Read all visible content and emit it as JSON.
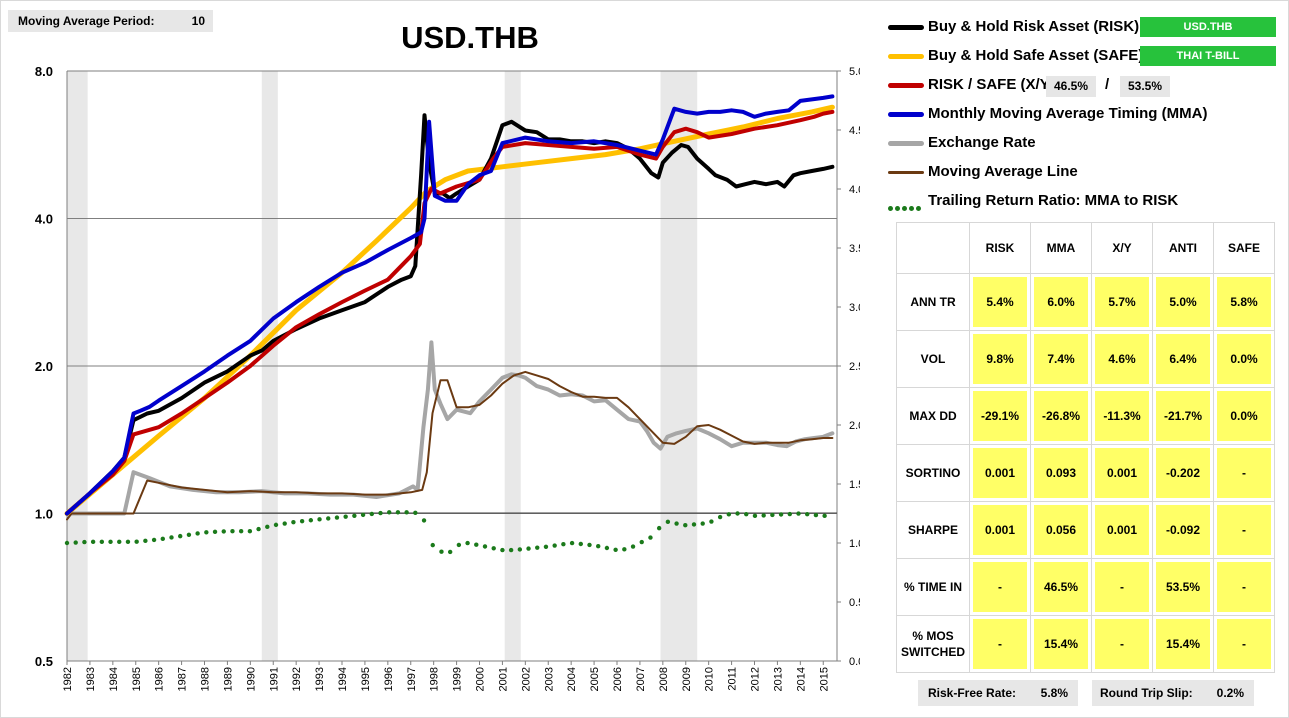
{
  "moving_average": {
    "label": "Moving Average Period:",
    "value": "10"
  },
  "title": "USD.THB",
  "legend": [
    {
      "label": "Buy & Hold Risk Asset (RISK):",
      "color": "#000000",
      "style": "thick",
      "badge": "USD.THB"
    },
    {
      "label": "Buy & Hold Safe Asset (SAFE):",
      "color": "#ffc000",
      "style": "thick",
      "badge": "THAI T-BILL"
    },
    {
      "label": "RISK / SAFE (X/Y):",
      "color": "#c00000",
      "style": "thick",
      "split_x": "46.5%",
      "split_y": "53.5%"
    },
    {
      "label": "Monthly Moving Average Timing (MMA)",
      "color": "#0000cc",
      "style": "thick"
    },
    {
      "label": "Exchange Rate",
      "color": "#a6a6a6",
      "style": "thick"
    },
    {
      "label": "Moving Average Line",
      "color": "#6b3a12",
      "style": "thin"
    },
    {
      "label": "Trailing Return Ratio: MMA to RISK",
      "color": "#1b7a1b",
      "style": "dots"
    }
  ],
  "slash": "/",
  "stats": {
    "columns": [
      "RISK",
      "MMA",
      "X/Y",
      "ANTI",
      "SAFE"
    ],
    "rows": [
      {
        "label": "ANN TR",
        "values": [
          "5.4%",
          "6.0%",
          "5.7%",
          "5.0%",
          "5.8%"
        ]
      },
      {
        "label": "VOL",
        "values": [
          "9.8%",
          "7.4%",
          "4.6%",
          "6.4%",
          "0.0%"
        ]
      },
      {
        "label": "MAX DD",
        "values": [
          "-29.1%",
          "-26.8%",
          "-11.3%",
          "-21.7%",
          "0.0%"
        ]
      },
      {
        "label": "SORTINO",
        "values": [
          "0.001",
          "0.093",
          "0.001",
          "-0.202",
          "-"
        ]
      },
      {
        "label": "SHARPE",
        "values": [
          "0.001",
          "0.056",
          "0.001",
          "-0.092",
          "-"
        ]
      },
      {
        "label": "% TIME IN",
        "values": [
          "-",
          "46.5%",
          "-",
          "53.5%",
          "-"
        ]
      },
      {
        "label": "% MOS SWITCHED",
        "values": [
          "-",
          "15.4%",
          "-",
          "15.4%",
          "-"
        ]
      }
    ]
  },
  "footer": {
    "risk_free_label": "Risk-Free Rate:",
    "risk_free_value": "5.8%",
    "slip_label": "Round Trip Slip:",
    "slip_value": "0.2%"
  },
  "chart_data": {
    "type": "line",
    "title": "USD.THB",
    "left_axis": {
      "scale": "log2",
      "range": [
        0.5,
        8.0
      ],
      "ticks": [
        "0.5",
        "1.0",
        "2.0",
        "4.0",
        "8.0"
      ]
    },
    "right_axis": {
      "scale": "linear",
      "range": [
        0.0,
        5.0
      ],
      "ticks": [
        "0.0",
        "0.5",
        "1.0",
        "1.5",
        "2.0",
        "2.5",
        "3.0",
        "3.5",
        "4.0",
        "4.5",
        "5.0"
      ]
    },
    "x_axis": {
      "range": [
        1982.0,
        2015.6
      ],
      "ticks": [
        "1982",
        "1983",
        "1984",
        "1985",
        "1986",
        "1987",
        "1988",
        "1989",
        "1990",
        "1991",
        "1992",
        "1993",
        "1994",
        "1995",
        "1996",
        "1997",
        "1998",
        "1999",
        "2000",
        "2001",
        "2002",
        "2003",
        "2004",
        "2005",
        "2006",
        "2007",
        "2008",
        "2009",
        "2010",
        "2011",
        "2012",
        "2013",
        "2014",
        "2015"
      ]
    },
    "gridlines": "horizontal at left-axis ticks",
    "shaded_periods": [
      [
        1982.0,
        1982.9
      ],
      [
        1990.5,
        1991.2
      ],
      [
        2001.1,
        2001.8
      ],
      [
        2007.9,
        2009.5
      ]
    ],
    "series": [
      {
        "name": "Exchange Rate",
        "axis": "right",
        "color": "#a6a6a6",
        "width": 4,
        "x": [
          1982.0,
          1984.3,
          1984.5,
          1984.9,
          1985.6,
          1986.5,
          1987.5,
          1988.5,
          1989.5,
          1990.5,
          1991.5,
          1992.5,
          1993.5,
          1994.5,
          1995.5,
          1996.5,
          1997.1,
          1997.3,
          1997.55,
          1997.75,
          1997.9,
          1998.05,
          1998.3,
          1998.6,
          1999.0,
          1999.6,
          2000.0,
          2000.5,
          2001.0,
          2001.4,
          2001.7,
          2002.0,
          2002.5,
          2003.0,
          2003.5,
          2004.0,
          2004.5,
          2005.0,
          2005.5,
          2006.0,
          2006.5,
          2007.0,
          2007.3,
          2007.6,
          2007.9,
          2008.2,
          2008.6,
          2009.0,
          2009.5,
          2010.0,
          2010.5,
          2011.0,
          2011.5,
          2012.0,
          2012.5,
          2013.0,
          2013.4,
          2013.8,
          2014.2,
          2014.6,
          2015.0,
          2015.4
        ],
        "y": [
          1.25,
          1.25,
          1.25,
          1.6,
          1.55,
          1.48,
          1.45,
          1.43,
          1.43,
          1.44,
          1.42,
          1.42,
          1.41,
          1.41,
          1.39,
          1.42,
          1.48,
          1.45,
          1.98,
          2.3,
          2.7,
          2.3,
          2.18,
          2.05,
          2.13,
          2.1,
          2.2,
          2.3,
          2.4,
          2.43,
          2.42,
          2.4,
          2.33,
          2.3,
          2.25,
          2.26,
          2.25,
          2.2,
          2.21,
          2.13,
          2.05,
          2.03,
          1.95,
          1.85,
          1.8,
          1.9,
          1.93,
          1.95,
          1.97,
          1.93,
          1.88,
          1.82,
          1.85,
          1.85,
          1.85,
          1.83,
          1.82,
          1.86,
          1.88,
          1.89,
          1.9,
          1.93
        ]
      },
      {
        "name": "Moving Average Line",
        "axis": "right",
        "color": "#6b3a12",
        "width": 2,
        "x": [
          1982.0,
          1982.2,
          1984.5,
          1984.9,
          1985.5,
          1986.0,
          1987.0,
          1988.0,
          1989.0,
          1990.0,
          1991.0,
          1992.0,
          1993.0,
          1994.0,
          1995.0,
          1996.0,
          1997.0,
          1997.5,
          1997.7,
          1997.95,
          1998.3,
          1998.6,
          1999.0,
          1999.5,
          2000.0,
          2000.5,
          2001.0,
          2001.5,
          2002.0,
          2002.5,
          2003.0,
          2003.5,
          2004.0,
          2004.5,
          2005.0,
          2005.5,
          2006.0,
          2006.5,
          2007.0,
          2007.5,
          2008.0,
          2008.5,
          2009.0,
          2009.5,
          2010.0,
          2010.5,
          2011.0,
          2011.5,
          2012.0,
          2012.5,
          2013.0,
          2013.5,
          2014.0,
          2014.5,
          2015.0,
          2015.4
        ],
        "y": [
          1.2,
          1.25,
          1.25,
          1.25,
          1.53,
          1.51,
          1.47,
          1.45,
          1.43,
          1.44,
          1.43,
          1.43,
          1.42,
          1.42,
          1.41,
          1.41,
          1.43,
          1.45,
          1.6,
          2.1,
          2.38,
          2.38,
          2.15,
          2.15,
          2.17,
          2.25,
          2.35,
          2.42,
          2.45,
          2.42,
          2.39,
          2.33,
          2.28,
          2.24,
          2.24,
          2.23,
          2.23,
          2.15,
          2.05,
          1.95,
          1.85,
          1.84,
          1.9,
          1.99,
          2.0,
          1.96,
          1.91,
          1.86,
          1.84,
          1.85,
          1.85,
          1.85,
          1.87,
          1.88,
          1.89,
          1.89
        ]
      },
      {
        "name": "Buy & Hold Safe Asset (SAFE)",
        "axis": "left",
        "color": "#ffc000",
        "width": 5,
        "x": [
          1982.0,
          1984.0,
          1986.0,
          1988.0,
          1990.0,
          1992.0,
          1994.0,
          1995.5,
          1997.0,
          1997.7,
          1998.5,
          1999.5,
          2001.0,
          2002.5,
          2004.0,
          2005.5,
          2007.0,
          2008.5,
          2010.0,
          2011.5,
          2013.0,
          2014.5,
          2015.4
        ],
        "y": [
          1.0,
          1.2,
          1.44,
          1.72,
          2.1,
          2.6,
          3.1,
          3.6,
          4.2,
          4.55,
          4.8,
          5.0,
          5.1,
          5.2,
          5.3,
          5.4,
          5.55,
          5.75,
          5.95,
          6.15,
          6.4,
          6.6,
          6.75
        ]
      },
      {
        "name": "Buy & Hold Risk Asset (RISK)",
        "axis": "left",
        "color": "#000000",
        "width": 4,
        "x": [
          1982.0,
          1983.0,
          1984.0,
          1984.5,
          1984.9,
          1985.5,
          1986.0,
          1987.0,
          1988.0,
          1989.0,
          1990.0,
          1990.5,
          1991.0,
          1992.0,
          1993.0,
          1994.0,
          1995.0,
          1996.0,
          1996.6,
          1997.0,
          1997.2,
          1997.45,
          1997.6,
          1997.8,
          1998.05,
          1998.4,
          1998.7,
          1999.0,
          1999.5,
          2000.0,
          2000.5,
          2001.0,
          2001.4,
          2002.0,
          2002.5,
          2003.0,
          2003.5,
          2004.0,
          2004.5,
          2005.0,
          2005.5,
          2006.0,
          2006.5,
          2007.0,
          2007.5,
          2007.8,
          2008.0,
          2008.4,
          2008.8,
          2009.1,
          2009.5,
          2010.0,
          2010.3,
          2010.8,
          2011.2,
          2011.6,
          2012.0,
          2012.5,
          2013.0,
          2013.3,
          2013.7,
          2014.0,
          2014.5,
          2015.0,
          2015.4
        ],
        "y": [
          1.0,
          1.1,
          1.22,
          1.3,
          1.55,
          1.6,
          1.62,
          1.72,
          1.85,
          1.95,
          2.1,
          2.15,
          2.25,
          2.38,
          2.5,
          2.6,
          2.7,
          2.9,
          3.0,
          3.05,
          3.2,
          4.9,
          6.5,
          5.2,
          4.5,
          4.5,
          4.4,
          4.5,
          4.65,
          4.8,
          5.3,
          6.2,
          6.3,
          6.05,
          6.0,
          5.8,
          5.8,
          5.75,
          5.75,
          5.7,
          5.75,
          5.7,
          5.55,
          5.3,
          4.95,
          4.85,
          5.2,
          5.45,
          5.65,
          5.6,
          5.3,
          5.05,
          4.9,
          4.8,
          4.65,
          4.7,
          4.75,
          4.7,
          4.75,
          4.65,
          4.9,
          4.95,
          5.0,
          5.05,
          5.1
        ]
      },
      {
        "name": "RISK / SAFE (X/Y)",
        "axis": "left",
        "color": "#c00000",
        "width": 4,
        "x": [
          1982.0,
          1983.0,
          1984.0,
          1984.5,
          1984.9,
          1986.0,
          1987.0,
          1988.0,
          1989.0,
          1990.0,
          1991.0,
          1992.0,
          1993.0,
          1994.0,
          1995.0,
          1996.0,
          1997.0,
          1997.4,
          1997.6,
          1997.9,
          1998.3,
          1999.0,
          2000.0,
          2000.6,
          2001.0,
          2002.0,
          2003.0,
          2004.0,
          2005.0,
          2006.0,
          2007.0,
          2007.7,
          2008.0,
          2008.5,
          2009.0,
          2009.5,
          2010.0,
          2011.0,
          2012.0,
          2013.0,
          2014.0,
          2014.6,
          2015.0,
          2015.4
        ],
        "y": [
          1.0,
          1.1,
          1.2,
          1.28,
          1.45,
          1.5,
          1.6,
          1.72,
          1.85,
          2.0,
          2.2,
          2.4,
          2.55,
          2.7,
          2.85,
          3.0,
          3.35,
          3.55,
          4.3,
          4.6,
          4.5,
          4.65,
          4.8,
          5.3,
          5.6,
          5.7,
          5.65,
          5.6,
          5.55,
          5.6,
          5.4,
          5.3,
          5.6,
          6.0,
          6.1,
          6.0,
          5.85,
          5.95,
          6.1,
          6.2,
          6.35,
          6.45,
          6.55,
          6.6
        ]
      },
      {
        "name": "Monthly Moving Average Timing (MMA)",
        "axis": "left",
        "color": "#0000cc",
        "width": 4,
        "x": [
          1982.0,
          1983.0,
          1984.0,
          1984.5,
          1984.9,
          1985.2,
          1985.6,
          1986.0,
          1987.0,
          1988.0,
          1989.0,
          1990.0,
          1991.0,
          1992.0,
          1993.0,
          1994.0,
          1995.0,
          1996.0,
          1997.0,
          1997.45,
          1997.6,
          1997.8,
          1998.05,
          1998.5,
          1999.0,
          1999.5,
          2000.0,
          2000.5,
          2001.0,
          2002.0,
          2003.0,
          2004.0,
          2005.0,
          2006.0,
          2007.0,
          2007.7,
          2008.0,
          2008.5,
          2009.0,
          2009.5,
          2010.0,
          2010.5,
          2011.0,
          2011.5,
          2012.0,
          2012.5,
          2013.0,
          2013.5,
          2014.0,
          2014.5,
          2015.0,
          2015.4
        ],
        "y": [
          1.0,
          1.1,
          1.22,
          1.3,
          1.6,
          1.62,
          1.65,
          1.7,
          1.82,
          1.95,
          2.1,
          2.25,
          2.5,
          2.7,
          2.9,
          3.1,
          3.25,
          3.45,
          3.65,
          3.75,
          4.0,
          6.3,
          4.45,
          4.35,
          4.35,
          4.7,
          4.9,
          5.0,
          5.7,
          5.85,
          5.75,
          5.7,
          5.75,
          5.65,
          5.5,
          5.4,
          5.8,
          6.7,
          6.6,
          6.55,
          6.6,
          6.6,
          6.65,
          6.6,
          6.45,
          6.55,
          6.6,
          6.65,
          6.95,
          7.0,
          7.05,
          7.1
        ]
      },
      {
        "name": "Trailing Return Ratio: MMA to RISK",
        "axis": "right",
        "color": "#1b7a1b",
        "style": "dots",
        "x": [
          1982.0,
          1983.0,
          1984.0,
          1985.0,
          1986.0,
          1987.0,
          1988.0,
          1989.0,
          1990.0,
          1991.0,
          1992.0,
          1993.0,
          1994.0,
          1995.0,
          1996.0,
          1997.0,
          1997.5,
          1997.8,
          1998.0,
          1998.3,
          1998.6,
          1999.0,
          1999.5,
          2000.0,
          2000.5,
          2001.0,
          2001.5,
          2002.0,
          2003.0,
          2004.0,
          2005.0,
          2006.0,
          2006.5,
          2007.0,
          2007.5,
          2007.8,
          2008.2,
          2009.0,
          2010.0,
          2010.5,
          2011.0,
          2011.5,
          2012.0,
          2013.0,
          2014.0,
          2015.0,
          2015.4
        ],
        "y": [
          1.0,
          1.01,
          1.01,
          1.01,
          1.03,
          1.06,
          1.09,
          1.1,
          1.1,
          1.15,
          1.18,
          1.2,
          1.22,
          1.24,
          1.26,
          1.26,
          1.25,
          1.03,
          0.97,
          0.93,
          0.9,
          0.98,
          1.0,
          0.98,
          0.96,
          0.94,
          0.94,
          0.95,
          0.97,
          1.0,
          0.98,
          0.94,
          0.95,
          1.0,
          1.05,
          1.12,
          1.18,
          1.15,
          1.17,
          1.22,
          1.25,
          1.25,
          1.23,
          1.24,
          1.25,
          1.23,
          1.23
        ]
      }
    ]
  }
}
